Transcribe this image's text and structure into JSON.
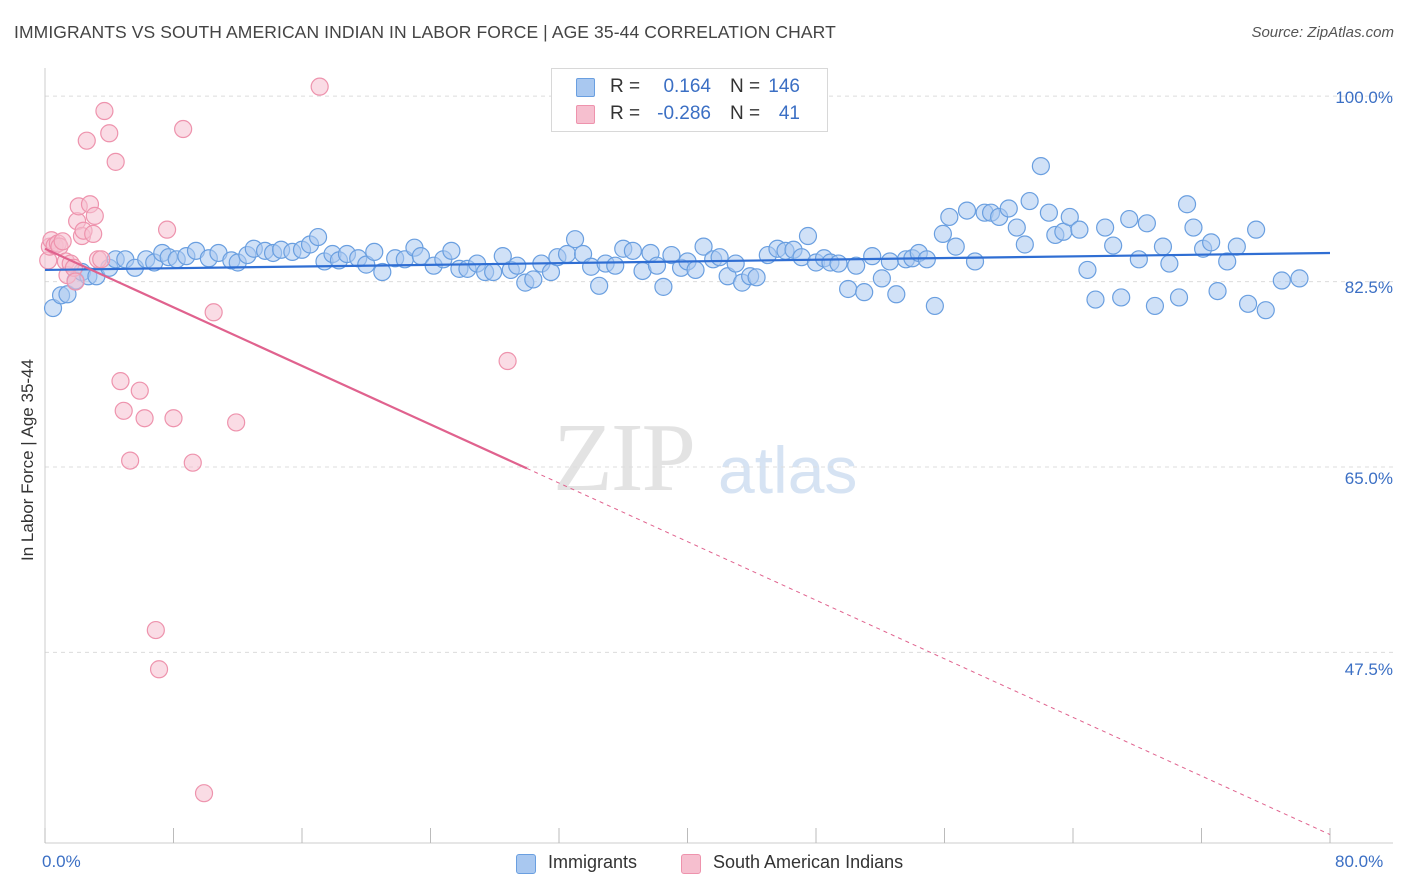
{
  "title": "IMMIGRANTS VS SOUTH AMERICAN INDIAN IN LABOR FORCE | AGE 35-44 CORRELATION CHART",
  "source": "Source: ZipAtlas.com",
  "watermark": {
    "part1": "ZIP",
    "part2": "atlas"
  },
  "legend_top": {
    "rows": [
      {
        "r_label": "R =",
        "r_value": "0.164",
        "n_label": "N =",
        "n_value": "146"
      },
      {
        "r_label": "R =",
        "r_value": "-0.286",
        "n_label": "N =",
        "n_value": "41"
      }
    ]
  },
  "legend_bottom": [
    {
      "label": "Immigrants"
    },
    {
      "label": "South American Indians"
    }
  ],
  "colors": {
    "immigrants_fill": "#a9c8f0",
    "immigrants_stroke": "#6a9fe0",
    "immigrants_line": "#2f6ed3",
    "sai_fill": "#f6bfcf",
    "sai_stroke": "#ee93ad",
    "sai_line": "#e0628e",
    "axis_text": "#3b6fc4",
    "grid": "#dcdcdc"
  },
  "chart_data": {
    "type": "scatter",
    "title": "IMMIGRANTS VS SOUTH AMERICAN INDIAN IN LABOR FORCE | AGE 35-44 CORRELATION CHART",
    "xlabel": "",
    "ylabel": "In Labor Force | Age 35-44",
    "xlim": [
      0,
      80
    ],
    "ylim": [
      29.5,
      102
    ],
    "x_tick_labels": [
      "0.0%",
      "80.0%"
    ],
    "y_ticks": [
      47.5,
      65.0,
      82.5,
      100.0
    ],
    "y_tick_labels": [
      "47.5%",
      "65.0%",
      "82.5%",
      "100.0%"
    ],
    "grid": true,
    "legend": "top-center",
    "series": [
      {
        "name": "Immigrants",
        "r": 0.164,
        "n": 146,
        "trend": {
          "x0": 0.0,
          "y0": 83.6,
          "x1": 80.0,
          "y1": 85.2
        },
        "points": [
          [
            0.5,
            80.0
          ],
          [
            1.0,
            81.2
          ],
          [
            1.4,
            81.3
          ],
          [
            1.9,
            82.6
          ],
          [
            2.3,
            83.4
          ],
          [
            2.7,
            83.0
          ],
          [
            3.2,
            83.0
          ],
          [
            4.0,
            83.8
          ],
          [
            4.4,
            84.6
          ],
          [
            5.0,
            84.6
          ],
          [
            5.6,
            83.8
          ],
          [
            6.3,
            84.6
          ],
          [
            6.8,
            84.3
          ],
          [
            7.3,
            85.2
          ],
          [
            7.7,
            84.8
          ],
          [
            8.2,
            84.6
          ],
          [
            8.8,
            84.9
          ],
          [
            9.4,
            85.4
          ],
          [
            10.2,
            84.7
          ],
          [
            10.8,
            85.2
          ],
          [
            11.6,
            84.5
          ],
          [
            12.0,
            84.3
          ],
          [
            12.6,
            85.0
          ],
          [
            13.0,
            85.6
          ],
          [
            13.7,
            85.4
          ],
          [
            14.2,
            85.2
          ],
          [
            14.7,
            85.5
          ],
          [
            15.4,
            85.3
          ],
          [
            16.0,
            85.5
          ],
          [
            16.5,
            86.0
          ],
          [
            17.0,
            86.7
          ],
          [
            17.4,
            84.4
          ],
          [
            17.9,
            85.1
          ],
          [
            18.3,
            84.5
          ],
          [
            18.8,
            85.1
          ],
          [
            19.5,
            84.7
          ],
          [
            20.0,
            84.1
          ],
          [
            20.5,
            85.3
          ],
          [
            21.0,
            83.4
          ],
          [
            21.8,
            84.7
          ],
          [
            22.4,
            84.6
          ],
          [
            23.0,
            85.7
          ],
          [
            23.4,
            84.9
          ],
          [
            24.2,
            84.0
          ],
          [
            24.8,
            84.6
          ],
          [
            25.3,
            85.4
          ],
          [
            25.8,
            83.7
          ],
          [
            26.3,
            83.7
          ],
          [
            26.9,
            84.2
          ],
          [
            27.4,
            83.4
          ],
          [
            27.9,
            83.4
          ],
          [
            28.5,
            84.9
          ],
          [
            29.0,
            83.6
          ],
          [
            29.4,
            84.0
          ],
          [
            29.9,
            82.4
          ],
          [
            30.4,
            82.7
          ],
          [
            30.9,
            84.2
          ],
          [
            31.5,
            83.4
          ],
          [
            31.9,
            84.8
          ],
          [
            32.5,
            85.1
          ],
          [
            33.0,
            86.5
          ],
          [
            33.5,
            85.1
          ],
          [
            34.0,
            83.9
          ],
          [
            34.5,
            82.1
          ],
          [
            34.9,
            84.2
          ],
          [
            35.5,
            84.0
          ],
          [
            36.0,
            85.6
          ],
          [
            36.6,
            85.4
          ],
          [
            37.2,
            83.5
          ],
          [
            37.7,
            85.2
          ],
          [
            38.1,
            84.0
          ],
          [
            38.5,
            82.0
          ],
          [
            39.0,
            85.0
          ],
          [
            39.6,
            83.8
          ],
          [
            40.0,
            84.4
          ],
          [
            40.5,
            83.6
          ],
          [
            41.0,
            85.8
          ],
          [
            41.6,
            84.6
          ],
          [
            42.0,
            84.8
          ],
          [
            42.5,
            83.0
          ],
          [
            43.0,
            84.2
          ],
          [
            43.4,
            82.4
          ],
          [
            43.9,
            83.0
          ],
          [
            44.3,
            82.9
          ],
          [
            45.0,
            85.0
          ],
          [
            45.6,
            85.6
          ],
          [
            46.1,
            85.4
          ],
          [
            46.6,
            85.5
          ],
          [
            47.1,
            84.8
          ],
          [
            47.5,
            86.8
          ],
          [
            48.0,
            84.3
          ],
          [
            48.5,
            84.7
          ],
          [
            48.9,
            84.3
          ],
          [
            49.4,
            84.2
          ],
          [
            50.0,
            81.8
          ],
          [
            50.5,
            84.0
          ],
          [
            51.0,
            81.5
          ],
          [
            51.5,
            84.9
          ],
          [
            52.1,
            82.8
          ],
          [
            52.6,
            84.4
          ],
          [
            53.0,
            81.3
          ],
          [
            53.6,
            84.6
          ],
          [
            54.0,
            84.7
          ],
          [
            54.4,
            85.2
          ],
          [
            54.9,
            84.6
          ],
          [
            55.4,
            80.2
          ],
          [
            55.9,
            87.0
          ],
          [
            56.3,
            88.6
          ],
          [
            56.7,
            85.8
          ],
          [
            57.4,
            89.2
          ],
          [
            57.9,
            84.4
          ],
          [
            58.5,
            89.0
          ],
          [
            58.9,
            89.0
          ],
          [
            59.4,
            88.6
          ],
          [
            60.0,
            89.4
          ],
          [
            60.5,
            87.6
          ],
          [
            61.0,
            86.0
          ],
          [
            61.3,
            90.1
          ],
          [
            62.0,
            93.4
          ],
          [
            62.5,
            89.0
          ],
          [
            62.9,
            86.9
          ],
          [
            63.4,
            87.2
          ],
          [
            63.8,
            88.6
          ],
          [
            64.4,
            87.4
          ],
          [
            64.9,
            83.6
          ],
          [
            65.4,
            80.8
          ],
          [
            66.0,
            87.6
          ],
          [
            66.5,
            85.9
          ],
          [
            67.0,
            81.0
          ],
          [
            67.5,
            88.4
          ],
          [
            68.1,
            84.6
          ],
          [
            68.6,
            88.0
          ],
          [
            69.1,
            80.2
          ],
          [
            69.6,
            85.8
          ],
          [
            70.0,
            84.2
          ],
          [
            70.6,
            81.0
          ],
          [
            71.1,
            89.8
          ],
          [
            71.5,
            87.6
          ],
          [
            72.1,
            85.6
          ],
          [
            72.6,
            86.2
          ],
          [
            73.0,
            81.6
          ],
          [
            73.6,
            84.4
          ],
          [
            74.2,
            85.8
          ],
          [
            74.9,
            80.4
          ],
          [
            75.4,
            87.4
          ],
          [
            76.0,
            79.8
          ],
          [
            77.0,
            82.6
          ],
          [
            78.1,
            82.8
          ]
        ]
      },
      {
        "name": "South American Indians",
        "r": -0.286,
        "n": 41,
        "trend": {
          "x0": 0.0,
          "y0": 85.6,
          "x1": 80.0,
          "y1": 30.3,
          "solid_until_x": 30.0
        },
        "points": [
          [
            0.2,
            84.5
          ],
          [
            0.3,
            85.8
          ],
          [
            0.4,
            86.4
          ],
          [
            0.6,
            85.9
          ],
          [
            0.8,
            86.1
          ],
          [
            0.9,
            85.8
          ],
          [
            1.1,
            86.3
          ],
          [
            1.3,
            84.4
          ],
          [
            1.4,
            83.1
          ],
          [
            1.6,
            84.2
          ],
          [
            1.8,
            83.8
          ],
          [
            1.9,
            82.5
          ],
          [
            2.0,
            88.2
          ],
          [
            2.1,
            89.6
          ],
          [
            2.3,
            86.8
          ],
          [
            2.4,
            87.3
          ],
          [
            2.6,
            95.8
          ],
          [
            2.8,
            89.8
          ],
          [
            3.0,
            87.0
          ],
          [
            3.1,
            88.7
          ],
          [
            3.3,
            84.6
          ],
          [
            3.5,
            84.6
          ],
          [
            3.7,
            98.6
          ],
          [
            4.0,
            96.5
          ],
          [
            4.4,
            93.8
          ],
          [
            4.7,
            73.1
          ],
          [
            4.9,
            70.3
          ],
          [
            5.3,
            65.6
          ],
          [
            5.9,
            72.2
          ],
          [
            6.2,
            69.6
          ],
          [
            6.9,
            49.6
          ],
          [
            7.1,
            45.9
          ],
          [
            7.6,
            87.4
          ],
          [
            8.0,
            69.6
          ],
          [
            8.6,
            96.9
          ],
          [
            9.2,
            65.4
          ],
          [
            9.9,
            34.2
          ],
          [
            10.5,
            79.6
          ],
          [
            11.9,
            69.2
          ],
          [
            17.1,
            100.9
          ],
          [
            28.8,
            75.0
          ]
        ]
      }
    ]
  }
}
